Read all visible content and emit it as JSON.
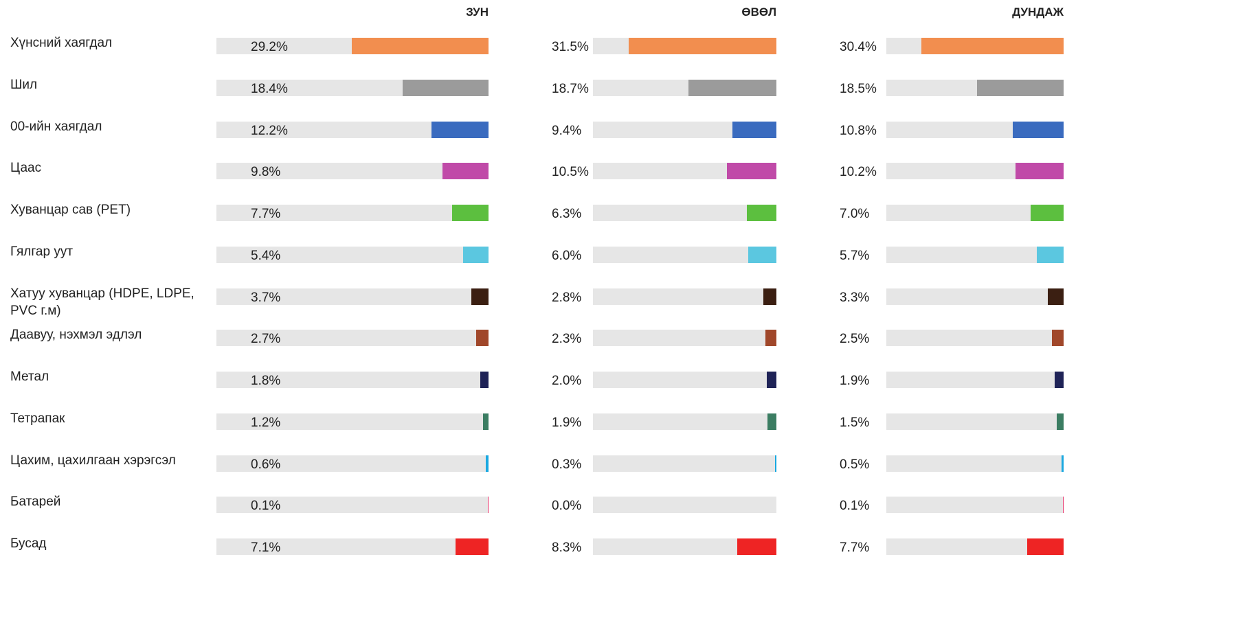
{
  "chart_data": {
    "type": "bar",
    "categories": [
      "Хүнсний хаягдал",
      "Шил",
      "00-ийн хаягдал",
      "Цаас",
      "Хуванцар сав (PET)",
      "Гялгар уут",
      "Хатуу хуванцар (HDPE, LDPE, PVC г.м)",
      "Даавуу, нэхмэл эдлэл",
      "Метал",
      "Тетрапак",
      "Цахим, цахилгаан хэрэгсэл",
      "Батарей",
      "Бусад"
    ],
    "colors": [
      "#f28e4f",
      "#9b9b9b",
      "#3a6bbf",
      "#c04aa8",
      "#5cbf3f",
      "#5bc7e0",
      "#3b1f12",
      "#a0472a",
      "#1f2357",
      "#3b7d62",
      "#1aa8e0",
      "#e8336b",
      "#ee2424"
    ],
    "series": [
      {
        "name": "ЗУН",
        "values": [
          29.2,
          18.4,
          12.2,
          9.8,
          7.7,
          5.4,
          3.7,
          2.7,
          1.8,
          1.2,
          0.6,
          0.1,
          7.1
        ],
        "value_labels": [
          "29.2%",
          "18.4%",
          "12.2%",
          "9.8%",
          "7.7%",
          "5.4%",
          "3.7%",
          "2.7%",
          "1.8%",
          "1.2%",
          "0.6%",
          "0.1%",
          "7.1%"
        ]
      },
      {
        "name": "ӨВӨЛ",
        "values": [
          31.5,
          18.7,
          9.4,
          10.5,
          6.3,
          6.0,
          2.8,
          2.3,
          2.0,
          1.9,
          0.3,
          0.0,
          8.3
        ],
        "value_labels": [
          "31.5%",
          "18.7%",
          "9.4%",
          "10.5%",
          "6.3%",
          "6.0%",
          "2.8%",
          "2.3%",
          "2.0%",
          "1.9%",
          "0.3%",
          "0.0%",
          "8.3%"
        ]
      },
      {
        "name": "ДУНДАЖ",
        "values": [
          30.4,
          18.5,
          10.8,
          10.2,
          7.0,
          5.7,
          3.3,
          2.5,
          1.9,
          1.5,
          0.5,
          0.1,
          7.7
        ],
        "value_labels": [
          "30.4%",
          "18.5%",
          "10.8%",
          "10.2%",
          "7.0%",
          "5.7%",
          "3.3%",
          "2.5%",
          "1.9%",
          "1.5%",
          "0.5%",
          "0.1%",
          "7.7%"
        ]
      }
    ]
  }
}
